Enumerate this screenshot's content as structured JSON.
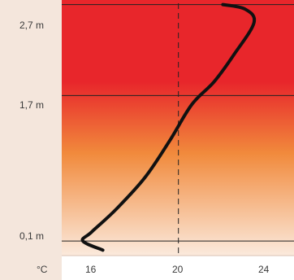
{
  "chart_data": {
    "type": "line",
    "title": "",
    "xlabel": "",
    "ylabel": "",
    "x_unit_label": "°C",
    "x_ticks": [
      {
        "value": 16,
        "label": "16"
      },
      {
        "value": 20,
        "label": "20"
      },
      {
        "value": 24,
        "label": "24"
      }
    ],
    "y_ticks": [
      {
        "value": 0.1,
        "label": "0,1 m"
      },
      {
        "value": 1.7,
        "label": "1,7 m"
      },
      {
        "value": 2.7,
        "label": "2,7 m"
      }
    ],
    "reference_line_x": 20,
    "xlim": [
      14.75,
      25.2
    ],
    "ylim": [
      -0.06,
      2.75
    ],
    "series": [
      {
        "points": [
          {
            "x": 16.6,
            "y": 0.0
          },
          {
            "x": 15.7,
            "y": 0.1
          },
          {
            "x": 16.1,
            "y": 0.2
          },
          {
            "x": 17.2,
            "y": 0.45
          },
          {
            "x": 18.5,
            "y": 0.8
          },
          {
            "x": 19.6,
            "y": 1.2
          },
          {
            "x": 20.6,
            "y": 1.6
          },
          {
            "x": 21.6,
            "y": 1.85
          },
          {
            "x": 22.5,
            "y": 2.15
          },
          {
            "x": 23.4,
            "y": 2.5
          },
          {
            "x": 23.0,
            "y": 2.65
          },
          {
            "x": 22.0,
            "y": 2.7
          }
        ]
      }
    ],
    "colors": {
      "background_top": "#e8262b",
      "background_mid": "#f18a3c",
      "background_bottom": "#fbeadd",
      "axis_label_strip": "#f4e6dc",
      "curve": "#111111",
      "gridline": "#222222"
    },
    "grid": false
  }
}
